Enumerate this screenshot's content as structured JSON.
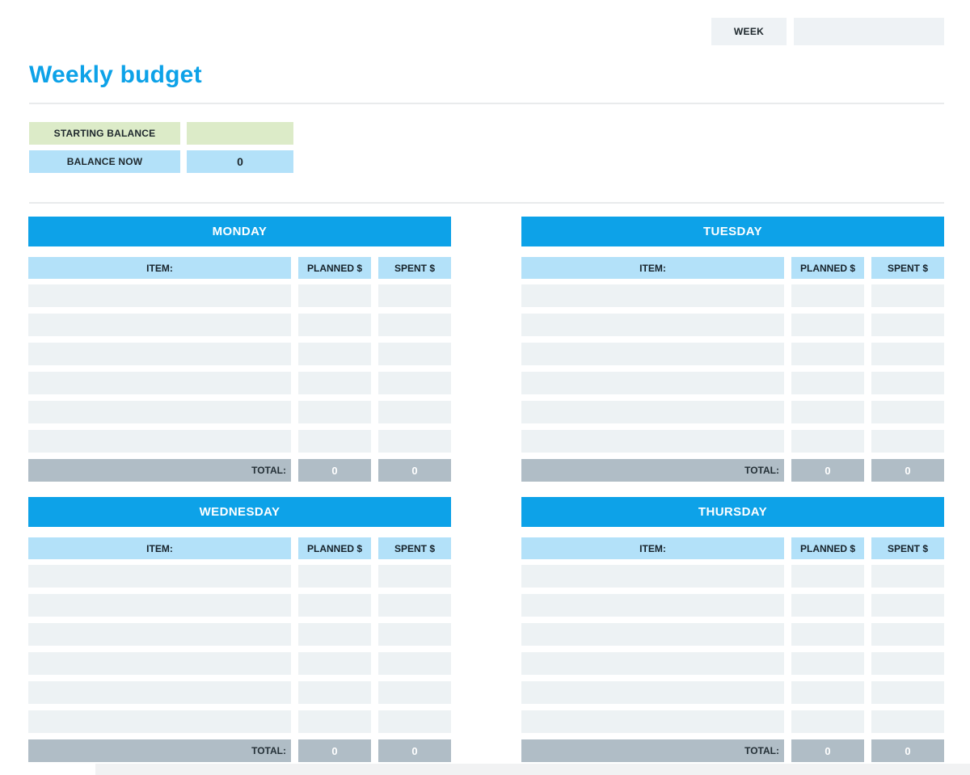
{
  "page": {
    "title": "Weekly budget",
    "week_label": "WEEK",
    "week_value": ""
  },
  "balance": {
    "starting_label": "STARTING BALANCE",
    "starting_value": "",
    "now_label": "BALANCE NOW",
    "now_value": "0"
  },
  "table_headers": {
    "item": "ITEM:",
    "planned": "PLANNED $",
    "spent": "SPENT $",
    "total": "TOTAL:"
  },
  "days": [
    {
      "name": "MONDAY",
      "rows": [
        {
          "item": "",
          "planned": "",
          "spent": ""
        },
        {
          "item": "",
          "planned": "",
          "spent": ""
        },
        {
          "item": "",
          "planned": "",
          "spent": ""
        },
        {
          "item": "",
          "planned": "",
          "spent": ""
        },
        {
          "item": "",
          "planned": "",
          "spent": ""
        },
        {
          "item": "",
          "planned": "",
          "spent": ""
        }
      ],
      "total_planned": "0",
      "total_spent": "0"
    },
    {
      "name": "TUESDAY",
      "rows": [
        {
          "item": "",
          "planned": "",
          "spent": ""
        },
        {
          "item": "",
          "planned": "",
          "spent": ""
        },
        {
          "item": "",
          "planned": "",
          "spent": ""
        },
        {
          "item": "",
          "planned": "",
          "spent": ""
        },
        {
          "item": "",
          "planned": "",
          "spent": ""
        },
        {
          "item": "",
          "planned": "",
          "spent": ""
        }
      ],
      "total_planned": "0",
      "total_spent": "0"
    },
    {
      "name": "WEDNESDAY",
      "rows": [
        {
          "item": "",
          "planned": "",
          "spent": ""
        },
        {
          "item": "",
          "planned": "",
          "spent": ""
        },
        {
          "item": "",
          "planned": "",
          "spent": ""
        },
        {
          "item": "",
          "planned": "",
          "spent": ""
        },
        {
          "item": "",
          "planned": "",
          "spent": ""
        },
        {
          "item": "",
          "planned": "",
          "spent": ""
        }
      ],
      "total_planned": "0",
      "total_spent": "0"
    },
    {
      "name": "THURSDAY",
      "rows": [
        {
          "item": "",
          "planned": "",
          "spent": ""
        },
        {
          "item": "",
          "planned": "",
          "spent": ""
        },
        {
          "item": "",
          "planned": "",
          "spent": ""
        },
        {
          "item": "",
          "planned": "",
          "spent": ""
        },
        {
          "item": "",
          "planned": "",
          "spent": ""
        },
        {
          "item": "",
          "planned": "",
          "spent": ""
        }
      ],
      "total_planned": "0",
      "total_spent": "0"
    }
  ],
  "colors": {
    "accent_blue": "#0da2e8",
    "light_blue": "#b3e1f9",
    "light_green": "#dcebc8",
    "row_fill": "#edf2f4",
    "total_grey": "#b0bdc6",
    "box_grey": "#eef2f5"
  }
}
